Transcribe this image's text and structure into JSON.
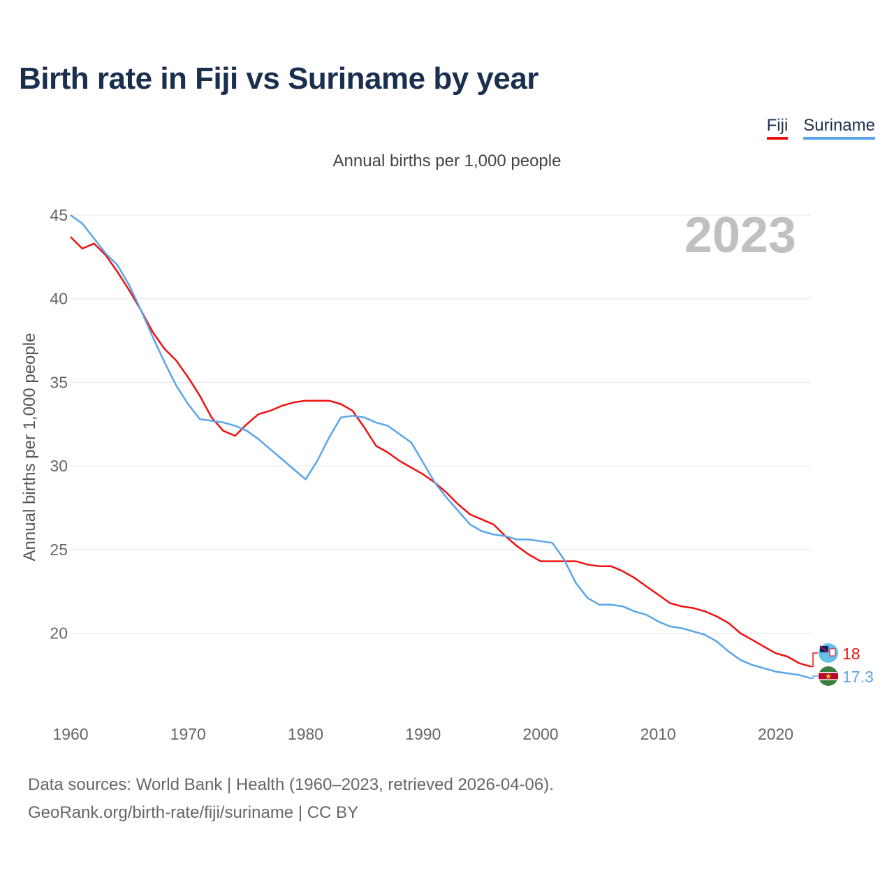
{
  "title": "Birth rate in Fiji vs Suriname by year",
  "legend": [
    {
      "label": "Fiji",
      "color": "#ee1111"
    },
    {
      "label": "Suriname",
      "color": "#5aa5e8"
    }
  ],
  "chart_data": {
    "type": "line",
    "title": "Birth rate in Fiji vs Suriname by year",
    "subtitle": "Annual births per 1,000 people",
    "ylabel": "Annual births per 1,000 people",
    "xlabel": "",
    "current_year": "2023",
    "xlim": [
      1960,
      2023
    ],
    "ylim": [
      16,
      45
    ],
    "yticks": [
      20,
      25,
      30,
      35,
      40,
      45
    ],
    "xticks": [
      1960,
      1970,
      1980,
      1990,
      2000,
      2010,
      2020
    ],
    "grid": true,
    "legend_position": "top-right",
    "x": [
      1960,
      1961,
      1962,
      1963,
      1964,
      1965,
      1966,
      1967,
      1968,
      1969,
      1970,
      1971,
      1972,
      1973,
      1974,
      1975,
      1976,
      1977,
      1978,
      1979,
      1980,
      1981,
      1982,
      1983,
      1984,
      1985,
      1986,
      1987,
      1988,
      1989,
      1990,
      1991,
      1992,
      1993,
      1994,
      1995,
      1996,
      1997,
      1998,
      1999,
      2000,
      2001,
      2002,
      2003,
      2004,
      2005,
      2006,
      2007,
      2008,
      2009,
      2010,
      2011,
      2012,
      2013,
      2014,
      2015,
      2016,
      2017,
      2018,
      2019,
      2020,
      2021,
      2022,
      2023
    ],
    "series": [
      {
        "name": "Fiji",
        "color": "#ee1111",
        "end_label": "18",
        "values": [
          43.7,
          43.0,
          43.3,
          42.6,
          41.6,
          40.5,
          39.3,
          38.0,
          37.0,
          36.3,
          35.3,
          34.2,
          32.9,
          32.1,
          31.8,
          32.5,
          33.1,
          33.3,
          33.6,
          33.8,
          33.9,
          33.9,
          33.9,
          33.7,
          33.3,
          32.3,
          31.2,
          30.8,
          30.3,
          29.9,
          29.5,
          29.0,
          28.4,
          27.7,
          27.1,
          26.8,
          26.5,
          25.8,
          25.2,
          24.7,
          24.3,
          24.3,
          24.3,
          24.3,
          24.1,
          24.0,
          24.0,
          23.7,
          23.3,
          22.8,
          22.3,
          21.8,
          21.6,
          21.5,
          21.3,
          21.0,
          20.6,
          20.0,
          19.6,
          19.2,
          18.8,
          18.6,
          18.2,
          18.0
        ]
      },
      {
        "name": "Suriname",
        "color": "#5aa5e8",
        "end_label": "17.3",
        "values": [
          45.0,
          44.5,
          43.6,
          42.7,
          42.0,
          40.8,
          39.3,
          37.7,
          36.2,
          34.8,
          33.7,
          32.8,
          32.7,
          32.6,
          32.4,
          32.1,
          31.6,
          31.0,
          30.4,
          29.8,
          29.2,
          30.3,
          31.7,
          32.9,
          33.0,
          32.9,
          32.6,
          32.4,
          31.9,
          31.4,
          30.2,
          29.0,
          28.1,
          27.3,
          26.5,
          26.1,
          25.9,
          25.8,
          25.6,
          25.6,
          25.5,
          25.4,
          24.4,
          23.0,
          22.1,
          21.7,
          21.7,
          21.6,
          21.3,
          21.1,
          20.7,
          20.4,
          20.3,
          20.1,
          19.9,
          19.5,
          18.9,
          18.4,
          18.1,
          17.9,
          17.7,
          17.6,
          17.5,
          17.3
        ]
      }
    ]
  },
  "source": {
    "line1": "Data sources: World Bank | Health (1960–2023, retrieved 2026-04-06).",
    "line2": "GeoRank.org/birth-rate/fiji/suriname | CC BY"
  }
}
